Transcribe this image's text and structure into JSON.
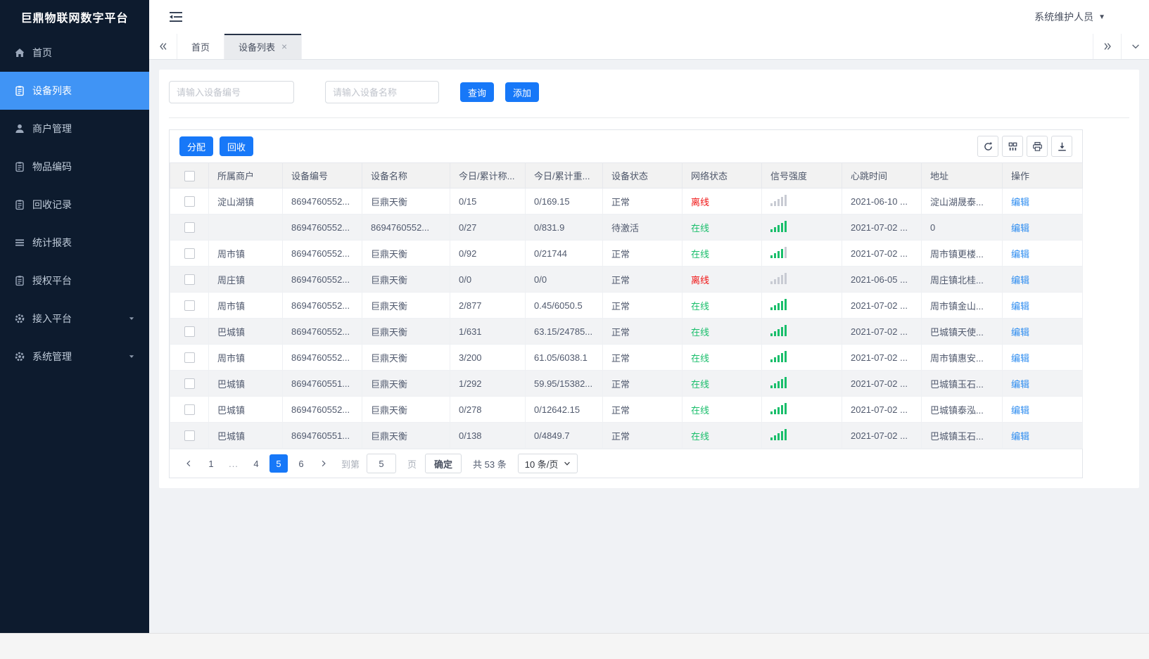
{
  "theme": {
    "sidebar-bg": "#0d1b2e",
    "sidebar-active": "#4094f5",
    "primary": "#1778f8",
    "link": "#2d8cf0",
    "online": "#19be6b",
    "offline": "#f01414",
    "signal-on": "#19be6b",
    "signal-off": "#c8cbd3"
  },
  "sidebar": {
    "title": "巨鼎物联网数字平台",
    "items": [
      {
        "label": "首页",
        "icon": "home",
        "active": false,
        "expandable": false
      },
      {
        "label": "设备列表",
        "icon": "clipboard",
        "active": true,
        "expandable": false
      },
      {
        "label": "商户管理",
        "icon": "user",
        "active": false,
        "expandable": false
      },
      {
        "label": "物品编码",
        "icon": "clipboard",
        "active": false,
        "expandable": false
      },
      {
        "label": "回收记录",
        "icon": "clipboard",
        "active": false,
        "expandable": false
      },
      {
        "label": "统计报表",
        "icon": "bars",
        "active": false,
        "expandable": false
      },
      {
        "label": "授权平台",
        "icon": "clipboard",
        "active": false,
        "expandable": false
      },
      {
        "label": "接入平台",
        "icon": "gear",
        "active": false,
        "expandable": true
      },
      {
        "label": "系统管理",
        "icon": "gear",
        "active": false,
        "expandable": true
      }
    ]
  },
  "topbar": {
    "user": "系统维护人员"
  },
  "tabbar": {
    "tabs": [
      {
        "label": "首页",
        "active": false,
        "closable": false
      },
      {
        "label": "设备列表",
        "active": true,
        "closable": true
      }
    ]
  },
  "search": {
    "device_code_placeholder": "请输入设备编号",
    "device_name_placeholder": "请输入设备名称",
    "query_label": "查询",
    "add_label": "添加"
  },
  "toolbar": {
    "assign_label": "分配",
    "recycle_label": "回收",
    "icons": [
      "refresh",
      "columns",
      "print",
      "download"
    ]
  },
  "table": {
    "columns": [
      "所属商户",
      "设备编号",
      "设备名称",
      "今日/累计称...",
      "今日/累计重...",
      "设备状态",
      "网络状态",
      "信号强度",
      "心跳时间",
      "地址",
      "操作"
    ],
    "rows": [
      {
        "merchant": "淀山湖镇",
        "code": "8694760552...",
        "name": "巨鼎天衡",
        "today_count": "0/15",
        "today_weight": "0/169.15",
        "status": "正常",
        "network": "离线",
        "network_state": "offline",
        "signal": 0,
        "heartbeat": "2021-06-10 ...",
        "address": "淀山湖晟泰...",
        "action": "编辑"
      },
      {
        "merchant": "",
        "code": "8694760552...",
        "name": "8694760552...",
        "today_count": "0/27",
        "today_weight": "0/831.9",
        "status": "待激活",
        "network": "在线",
        "network_state": "online",
        "signal": 5,
        "heartbeat": "2021-07-02 ...",
        "address": "0",
        "action": "编辑"
      },
      {
        "merchant": "周市镇",
        "code": "8694760552...",
        "name": "巨鼎天衡",
        "today_count": "0/92",
        "today_weight": "0/21744",
        "status": "正常",
        "network": "在线",
        "network_state": "online",
        "signal": 4,
        "heartbeat": "2021-07-02 ...",
        "address": "周市镇更楼...",
        "action": "编辑"
      },
      {
        "merchant": "周庄镇",
        "code": "8694760552...",
        "name": "巨鼎天衡",
        "today_count": "0/0",
        "today_weight": "0/0",
        "status": "正常",
        "network": "离线",
        "network_state": "offline",
        "signal": 0,
        "heartbeat": "2021-06-05 ...",
        "address": "周庄镇北桂...",
        "action": "编辑"
      },
      {
        "merchant": "周市镇",
        "code": "8694760552...",
        "name": "巨鼎天衡",
        "today_count": "2/877",
        "today_weight": "0.45/6050.5",
        "status": "正常",
        "network": "在线",
        "network_state": "online",
        "signal": 5,
        "heartbeat": "2021-07-02 ...",
        "address": "周市镇金山...",
        "action": "编辑"
      },
      {
        "merchant": "巴城镇",
        "code": "8694760552...",
        "name": "巨鼎天衡",
        "today_count": "1/631",
        "today_weight": "63.15/24785...",
        "status": "正常",
        "network": "在线",
        "network_state": "online",
        "signal": 5,
        "heartbeat": "2021-07-02 ...",
        "address": "巴城镇天使...",
        "action": "编辑"
      },
      {
        "merchant": "周市镇",
        "code": "8694760552...",
        "name": "巨鼎天衡",
        "today_count": "3/200",
        "today_weight": "61.05/6038.1",
        "status": "正常",
        "network": "在线",
        "network_state": "online",
        "signal": 5,
        "heartbeat": "2021-07-02 ...",
        "address": "周市镇惠安...",
        "action": "编辑"
      },
      {
        "merchant": "巴城镇",
        "code": "8694760551...",
        "name": "巨鼎天衡",
        "today_count": "1/292",
        "today_weight": "59.95/15382...",
        "status": "正常",
        "network": "在线",
        "network_state": "online",
        "signal": 5,
        "heartbeat": "2021-07-02 ...",
        "address": "巴城镇玉石...",
        "action": "编辑"
      },
      {
        "merchant": "巴城镇",
        "code": "8694760552...",
        "name": "巨鼎天衡",
        "today_count": "0/278",
        "today_weight": "0/12642.15",
        "status": "正常",
        "network": "在线",
        "network_state": "online",
        "signal": 5,
        "heartbeat": "2021-07-02 ...",
        "address": "巴城镇泰泓...",
        "action": "编辑"
      },
      {
        "merchant": "巴城镇",
        "code": "8694760551...",
        "name": "巨鼎天衡",
        "today_count": "0/138",
        "today_weight": "0/4849.7",
        "status": "正常",
        "network": "在线",
        "network_state": "online",
        "signal": 5,
        "heartbeat": "2021-07-02 ...",
        "address": "巴城镇玉石...",
        "action": "编辑"
      }
    ]
  },
  "pagination": {
    "pages": [
      "1",
      "...",
      "4",
      "5",
      "6"
    ],
    "active": "5",
    "goto_label": "到第",
    "goto_value": "5",
    "page_unit": "页",
    "confirm_label": "确定",
    "total_label": "共 53 条",
    "page_size": "10 条/页"
  }
}
